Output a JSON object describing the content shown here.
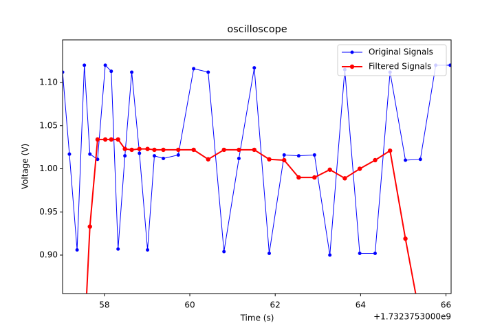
{
  "chart_data": {
    "type": "line",
    "title": "oscilloscope",
    "x_label": "Time (s)",
    "y_label": "Voltage (V)",
    "x_offset_label": "+1.7323753000e9",
    "xlim": [
      57.02,
      66.12
    ],
    "ylim": [
      0.8554,
      1.1494
    ],
    "xticks": [
      58,
      60,
      62,
      64,
      66
    ],
    "yticks": [
      {
        "value": 0.9,
        "label": "0.90"
      },
      {
        "value": 0.95,
        "label": "0.95"
      },
      {
        "value": 1.0,
        "label": "1.00"
      },
      {
        "value": 1.05,
        "label": "1.05"
      },
      {
        "value": 1.1,
        "label": "1.10"
      }
    ],
    "legend": "upper right",
    "series": [
      {
        "name": "Original Signals",
        "color": "#0000ff",
        "x": [
          57.02,
          57.18,
          57.36,
          57.53,
          57.66,
          57.84,
          58.02,
          58.16,
          58.32,
          58.48,
          58.64,
          58.82,
          59.01,
          59.17,
          59.38,
          59.73,
          60.09,
          60.43,
          60.8,
          61.15,
          61.51,
          61.86,
          62.21,
          62.55,
          62.92,
          63.28,
          63.63,
          63.98,
          64.34,
          64.69,
          65.05,
          65.4,
          65.76,
          66.1
        ],
        "values": [
          1.112,
          1.017,
          0.906,
          1.12,
          1.017,
          1.011,
          1.12,
          1.113,
          0.907,
          1.015,
          1.112,
          1.018,
          0.906,
          1.015,
          1.012,
          1.016,
          1.116,
          1.112,
          0.904,
          1.012,
          1.117,
          0.902,
          1.016,
          1.015,
          1.016,
          0.9,
          1.115,
          0.902,
          0.902,
          1.112,
          1.01,
          1.011,
          1.12,
          1.12
        ]
      },
      {
        "name": "Filtered Signals",
        "color": "#ff0000",
        "x": [
          57.53,
          57.66,
          57.84,
          58.02,
          58.16,
          58.32,
          58.48,
          58.64,
          58.82,
          59.01,
          59.17,
          59.38,
          59.73,
          60.09,
          60.43,
          60.8,
          61.15,
          61.51,
          61.86,
          62.21,
          62.55,
          62.92,
          63.28,
          63.63,
          63.98,
          64.34,
          64.69,
          65.05,
          65.4
        ],
        "values": [
          0.8,
          0.933,
          1.034,
          1.034,
          1.034,
          1.034,
          1.023,
          1.022,
          1.023,
          1.023,
          1.022,
          1.022,
          1.022,
          1.022,
          1.011,
          1.022,
          1.022,
          1.022,
          1.011,
          1.01,
          0.99,
          0.99,
          0.999,
          0.989,
          1.0,
          1.01,
          1.021,
          0.919,
          0.826
        ]
      }
    ]
  }
}
